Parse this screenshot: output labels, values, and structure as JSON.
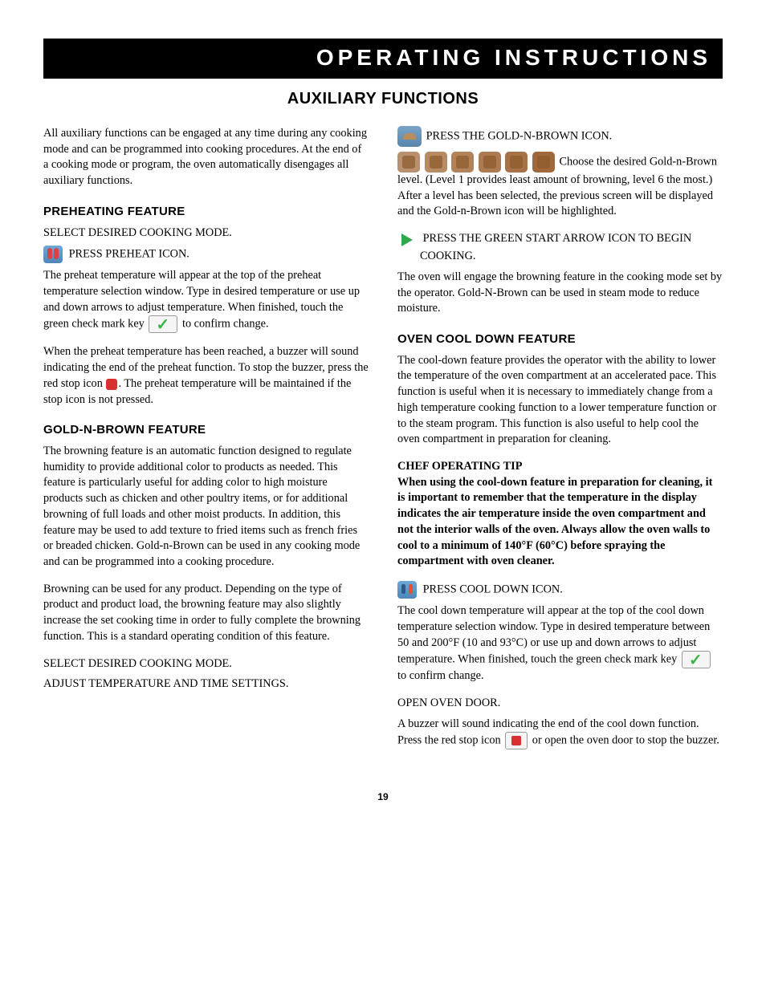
{
  "header": {
    "title": "OPERATING INSTRUCTIONS"
  },
  "section_title": "AUXILIARY FUNCTIONS",
  "intro": "All auxiliary functions can be engaged at any time during any cooking mode and can be programmed into cooking procedures. At the end of a cooking mode or program, the oven automatically disengages all auxiliary functions.",
  "preheating": {
    "heading": "PREHEATING FEATURE",
    "step1": "SELECT DESIRED COOKING MODE.",
    "step2": "PRESS PREHEAT ICON.",
    "p1a": "The preheat temperature will appear at the top of the preheat temperature selection window. Type in desired temperature or use up and down arrows to adjust temperature. When finished, touch the green check mark key ",
    "p1b": " to confirm change.",
    "p2a": "When the preheat temperature has been reached, a buzzer will sound indicating the end of the preheat function. To stop the buzzer, press the red stop icon ",
    "p2b": ". The preheat temperature will be maintained if the stop icon is not pressed."
  },
  "gnb": {
    "heading": "GOLD-N-BROWN FEATURE",
    "p1": "The browning feature is an automatic function designed to regulate humidity to provide additional color to products as needed. This feature is particularly useful for adding color to high moisture products such as chicken and other poultry items, or for additional browning of full loads and other moist products. In addition, this feature may be used to add texture to fried items such as french fries or breaded chicken. Gold-n-Brown can be used in any cooking mode and can be programmed into a cooking procedure.",
    "p2": "Browning can be used for any product. Depending on the type of product and product load, the browning feature may also slightly increase the set cooking time in order to fully complete the browning function. This is a standard operating condition of this feature.",
    "step1": "SELECT DESIRED COOKING MODE.",
    "step2": "ADJUST TEMPERATURE AND TIME SETTINGS.",
    "step3": "PRESS THE GOLD-N-BROWN ICON.",
    "levels_pre": " Choose the desired Gold-n-Brown level. (Level 1 provides least amount of browning, level 6 the most.) After a level has been selected, the previous screen will be displayed and the Gold-n-Brown icon will be highlighted.",
    "step4": "PRESS THE GREEN START ARROW ICON TO BEGIN COOKING.",
    "p3": "The oven will engage the browning feature in the cooking mode set by the operator. Gold-N-Brown can be used in steam mode to reduce moisture.",
    "level_colors": [
      "#b99170",
      "#b68a63",
      "#b2835a",
      "#ad7b51",
      "#a77247",
      "#a0693d"
    ]
  },
  "cooldown": {
    "heading": "OVEN COOL DOWN FEATURE",
    "p1": "The cool-down feature provides the operator with the ability to lower the temperature of the oven compartment at an accelerated pace. This function is useful when it is necessary to immediately change from a high temperature cooking function to a lower temperature function or to the steam program. This function is also useful to help cool the oven compartment in preparation for cleaning.",
    "tip_head": "CHEF OPERATING TIP",
    "tip_body": "When using the cool-down feature in preparation for cleaning, it is important to remember that the temperature in the display indicates the air temperature inside the oven compartment and not the interior walls of the oven. Always allow the oven walls to cool to a minimum of 140°F (60°C) before spraying the compartment with oven cleaner.",
    "step1": "PRESS COOL DOWN ICON.",
    "p2a": "The cool down temperature will appear at the top of the cool down temperature selection window. Type in desired temperature  between 50 and 200°F (10 and 93°C) or use up and down arrows to adjust temperature. When finished, touch the green check mark key ",
    "p2b": " to confirm change.",
    "step2": "OPEN OVEN DOOR.",
    "p3a": "A buzzer will sound indicating the end of the cool down function. Press the red stop icon ",
    "p3b": " or open the oven door to stop the buzzer."
  },
  "page_number": "19"
}
